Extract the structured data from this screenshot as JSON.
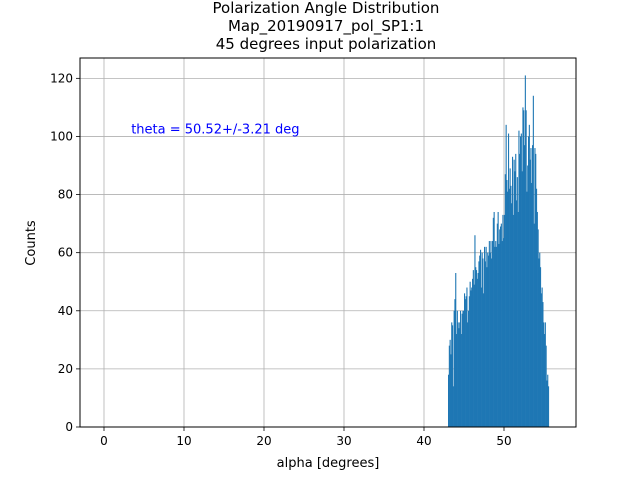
{
  "chart_data": {
    "type": "bar",
    "subtype": "histogram",
    "title_lines": [
      "Polarization Angle Distribution",
      "Map_20190917_pol_SP1:1",
      "45 degrees input polarization"
    ],
    "xlabel": "alpha [degrees]",
    "ylabel": "Counts",
    "xlim": [
      -3,
      59
    ],
    "ylim": [
      0,
      127
    ],
    "xticks": [
      0,
      10,
      20,
      30,
      40,
      50
    ],
    "yticks": [
      0,
      20,
      40,
      60,
      80,
      100,
      120
    ],
    "grid": true,
    "bar_color": "#1f77b4",
    "annotation": {
      "text": "theta = 50.52+/-3.21 deg",
      "x": 3.4,
      "y": 101,
      "color": "#0000ff"
    },
    "bins": {
      "start": 43.0,
      "width": 0.1,
      "values": [
        18,
        28,
        30,
        25,
        36,
        35,
        14,
        40,
        44,
        53,
        32,
        40,
        36,
        34,
        36,
        40,
        32,
        39,
        40,
        40,
        46,
        44,
        45,
        48,
        36,
        40,
        45,
        50,
        47,
        48,
        51,
        54,
        49,
        66,
        55,
        54,
        51,
        53,
        57,
        59,
        61,
        48,
        60,
        58,
        46,
        62,
        57,
        62,
        55,
        60,
        59,
        64,
        60,
        64,
        58,
        64,
        72,
        74,
        62,
        64,
        62,
        70,
        74,
        63,
        68,
        69,
        70,
        64,
        73,
        65,
        73,
        87,
        104,
        85,
        81,
        101,
        82,
        89,
        83,
        77,
        93,
        73,
        92,
        88,
        94,
        78,
        86,
        74,
        102,
        94,
        100,
        101,
        88,
        110,
        109,
        97,
        121,
        109,
        81,
        90,
        100,
        104,
        92,
        96,
        84,
        97,
        114,
        70,
        96,
        94,
        82,
        74,
        68,
        58,
        60,
        55,
        46,
        48,
        43,
        36,
        32,
        36,
        28,
        16,
        18,
        14
      ]
    }
  }
}
